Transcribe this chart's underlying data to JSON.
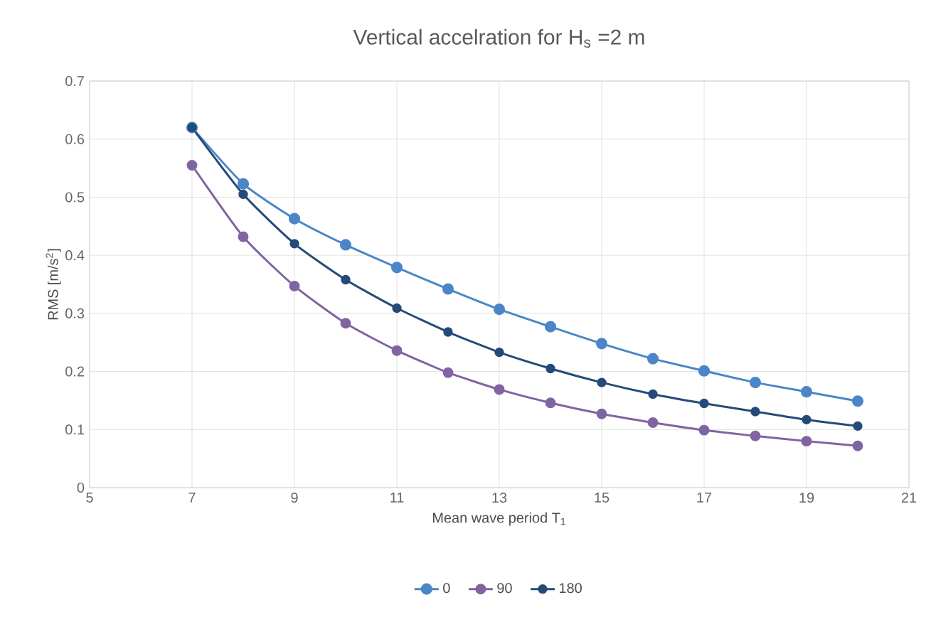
{
  "chart_data": {
    "type": "line",
    "title": "Vertical accelration for H$_{s}$ =2 m",
    "xlabel": "Mean wave period T$_{1}$",
    "ylabel": "RMS [m/s$^{2}$]",
    "x": [
      7,
      8,
      9,
      10,
      11,
      12,
      13,
      14,
      15,
      16,
      17,
      18,
      19,
      20
    ],
    "series": [
      {
        "name": "0",
        "color": "#4a86c8",
        "values": [
          0.62,
          0.523,
          0.463,
          0.418,
          0.379,
          0.342,
          0.307,
          0.277,
          0.248,
          0.222,
          0.201,
          0.181,
          0.165,
          0.149
        ]
      },
      {
        "name": "90",
        "color": "#8064a2",
        "values": [
          0.555,
          0.432,
          0.347,
          0.283,
          0.236,
          0.198,
          0.169,
          0.146,
          0.127,
          0.112,
          0.099,
          0.089,
          0.08,
          0.072
        ]
      },
      {
        "name": "180",
        "color": "#264a78",
        "values": [
          0.62,
          0.505,
          0.42,
          0.358,
          0.309,
          0.268,
          0.233,
          0.205,
          0.181,
          0.161,
          0.145,
          0.131,
          0.117,
          0.106
        ]
      }
    ],
    "xlim": [
      5,
      21
    ],
    "xticks": [
      5,
      7,
      9,
      11,
      13,
      15,
      17,
      19,
      21
    ],
    "ylim": [
      0,
      0.7
    ],
    "yticks": [
      0,
      0.1,
      0.2,
      0.3,
      0.4,
      0.5,
      0.6,
      0.7
    ],
    "grid": true,
    "legend": "bottom",
    "marker": "circle",
    "line_style": "solid"
  }
}
